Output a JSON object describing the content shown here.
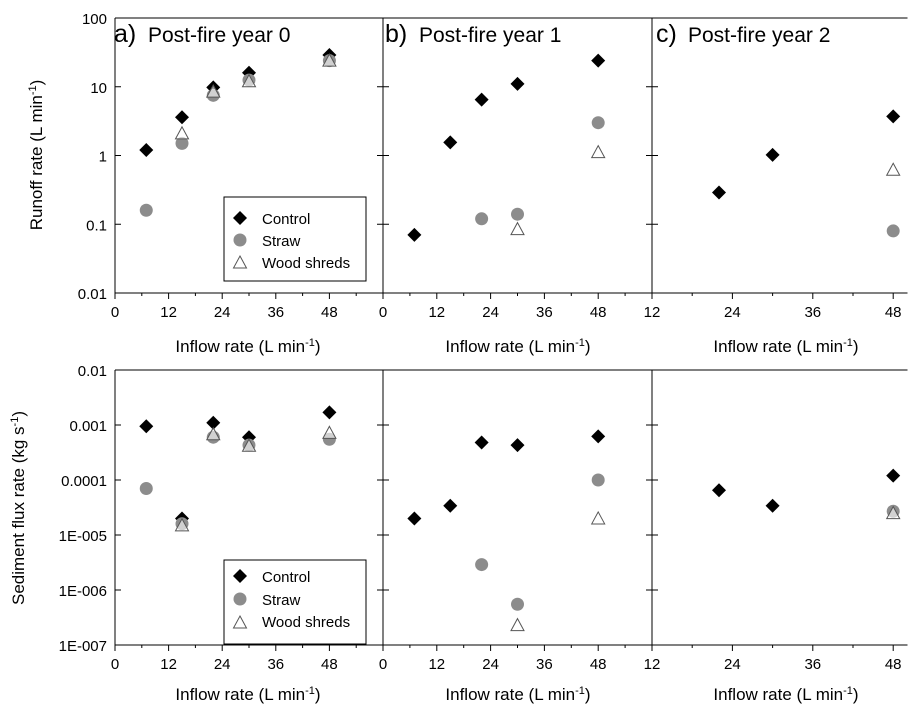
{
  "figure": {
    "x_axis_label": "Inflow rate (L min",
    "x_axis_label_sup": "-1",
    "x_axis_label_end": ")",
    "top_y_label": "Runoff rate (L min",
    "top_y_label_sup": "-1",
    "top_y_label_end": ")",
    "bottom_y_label": "Sediment flux rate (kg s",
    "bottom_y_label_sup": "-1",
    "bottom_y_label_end": ")",
    "panel_a_letter": "a)",
    "panel_a_title": "Post-fire year 0",
    "panel_b_letter": "b)",
    "panel_b_title": "Post-fire year 1",
    "panel_c_letter": "c)",
    "panel_c_title": "Post-fire year 2",
    "legend": [
      "Control",
      "Straw",
      "Wood shreds"
    ],
    "colors": {
      "control": "#000000",
      "straw": "#8c8c8c",
      "wood": "#ffffff",
      "wood_stroke": "#555555"
    }
  },
  "chart_data": [
    {
      "type": "scatter",
      "panel": "a",
      "row": "runoff",
      "title": "a) Post-fire year 0",
      "xlabel": "Inflow rate (L min-1)",
      "ylabel": "Runoff rate (L min-1)",
      "xlim": [
        0,
        60
      ],
      "xticks": [
        "0",
        "12",
        "24",
        "36",
        "48"
      ],
      "ylim": [
        0.01,
        100
      ],
      "ylog": true,
      "yticks": [
        "0.01",
        "0.1",
        "1",
        "10",
        "100"
      ],
      "legend_position": "bottom-right",
      "series": [
        {
          "name": "Control",
          "x": [
            7,
            15,
            22,
            30,
            48
          ],
          "y": [
            1.2,
            3.6,
            9.8,
            16,
            29
          ]
        },
        {
          "name": "Straw",
          "x": [
            7,
            15,
            22,
            30,
            48
          ],
          "y": [
            0.16,
            1.5,
            7.5,
            12.5,
            24
          ]
        },
        {
          "name": "Wood shreds",
          "x": [
            15,
            22,
            30,
            48
          ],
          "y": [
            2.1,
            8.5,
            12,
            24
          ]
        }
      ]
    },
    {
      "type": "scatter",
      "panel": "b",
      "row": "runoff",
      "title": "b) Post-fire year 1",
      "xlabel": "Inflow rate (L min-1)",
      "xlim": [
        0,
        60
      ],
      "xticks": [
        "0",
        "12",
        "24",
        "36",
        "48"
      ],
      "ylim": [
        0.01,
        100
      ],
      "ylog": true,
      "series": [
        {
          "name": "Control",
          "x": [
            7,
            15,
            22,
            30,
            48
          ],
          "y": [
            0.07,
            1.55,
            6.5,
            11,
            24
          ]
        },
        {
          "name": "Straw",
          "x": [
            22,
            30,
            48
          ],
          "y": [
            0.12,
            0.14,
            3
          ]
        },
        {
          "name": "Wood shreds",
          "x": [
            30,
            48
          ],
          "y": [
            0.085,
            1.12
          ]
        }
      ]
    },
    {
      "type": "scatter",
      "panel": "c",
      "row": "runoff",
      "title": "c) Post-fire year 2",
      "xlabel": "Inflow rate (L min-1)",
      "xlim": [
        12,
        52
      ],
      "xticks": [
        "12",
        "24",
        "36",
        "48"
      ],
      "ylim": [
        0.01,
        100
      ],
      "ylog": true,
      "series": [
        {
          "name": "Control",
          "x": [
            22,
            30,
            48
          ],
          "y": [
            0.29,
            1.02,
            3.7
          ]
        },
        {
          "name": "Straw",
          "x": [
            48
          ],
          "y": [
            0.08
          ]
        },
        {
          "name": "Wood shreds",
          "x": [
            48
          ],
          "y": [
            0.62
          ]
        }
      ]
    },
    {
      "type": "scatter",
      "panel": "a",
      "row": "sediment",
      "xlabel": "Inflow rate (L min-1)",
      "ylabel": "Sediment flux rate (kg s-1)",
      "xlim": [
        0,
        60
      ],
      "xticks": [
        "0",
        "12",
        "24",
        "36",
        "48"
      ],
      "ylim": [
        1e-07,
        0.01
      ],
      "ylog": true,
      "yticks": [
        "1E-007",
        "1E-006",
        "1E-005",
        "0.0001",
        "0.001",
        "0.01"
      ],
      "legend_position": "bottom-right",
      "series": [
        {
          "name": "Control",
          "x": [
            7,
            15,
            22,
            30,
            48
          ],
          "y": [
            0.00095,
            2e-05,
            0.0011,
            0.0006,
            0.0017
          ]
        },
        {
          "name": "Straw",
          "x": [
            7,
            15,
            22,
            30,
            48
          ],
          "y": [
            7e-05,
            1.6e-05,
            0.0006,
            0.00043,
            0.00055
          ]
        },
        {
          "name": "Wood shreds",
          "x": [
            15,
            22,
            30,
            48
          ],
          "y": [
            1.5e-05,
            0.00068,
            0.00042,
            0.00072
          ]
        }
      ]
    },
    {
      "type": "scatter",
      "panel": "b",
      "row": "sediment",
      "xlabel": "Inflow rate (L min-1)",
      "xlim": [
        0,
        60
      ],
      "xticks": [
        "0",
        "12",
        "24",
        "36",
        "48"
      ],
      "ylim": [
        1e-07,
        0.01
      ],
      "ylog": true,
      "series": [
        {
          "name": "Control",
          "x": [
            7,
            15,
            22,
            30,
            48
          ],
          "y": [
            2e-05,
            3.4e-05,
            0.00048,
            0.00043,
            0.00062
          ]
        },
        {
          "name": "Straw",
          "x": [
            22,
            30,
            48
          ],
          "y": [
            2.9e-06,
            5.5e-07,
            0.0001
          ]
        },
        {
          "name": "Wood shreds",
          "x": [
            30,
            48
          ],
          "y": [
            2.3e-07,
            2e-05
          ]
        }
      ]
    },
    {
      "type": "scatter",
      "panel": "c",
      "row": "sediment",
      "xlabel": "Inflow rate (L min-1)",
      "xlim": [
        12,
        52
      ],
      "xticks": [
        "12",
        "24",
        "36",
        "48"
      ],
      "ylim": [
        1e-07,
        0.01
      ],
      "ylog": true,
      "series": [
        {
          "name": "Control",
          "x": [
            22,
            30,
            48
          ],
          "y": [
            6.5e-05,
            3.4e-05,
            0.00012
          ]
        },
        {
          "name": "Straw",
          "x": [
            48
          ],
          "y": [
            2.7e-05
          ]
        },
        {
          "name": "Wood shreds",
          "x": [
            48
          ],
          "y": [
            2.5e-05
          ]
        }
      ]
    }
  ]
}
